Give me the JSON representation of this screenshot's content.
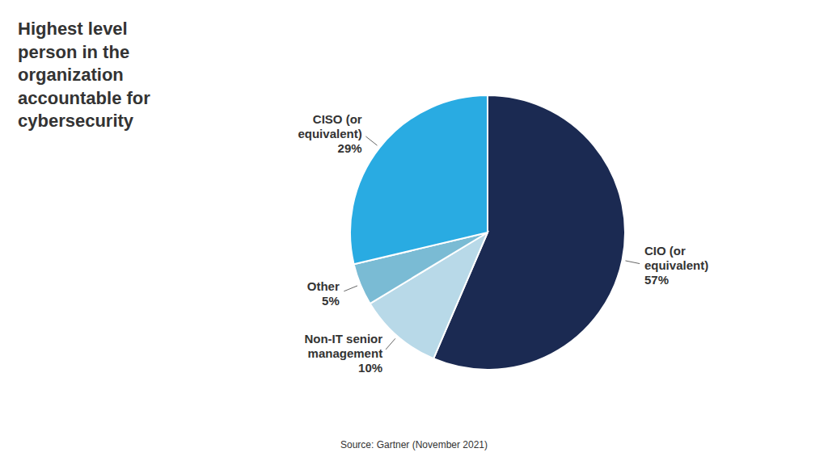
{
  "chart_data": {
    "type": "pie",
    "title": "Highest level\nperson in the\norganization\naccountable for\ncybersecurity",
    "annotations": [
      "Source: Gartner (November 2021)"
    ],
    "categories": [
      "CIO (or\nequivalent)",
      "Non-IT senior\nmanagement",
      "Other",
      "CISO (or\nequivalent)"
    ],
    "values": [
      57,
      10,
      5,
      29
    ],
    "value_labels": [
      "57%",
      "10%",
      "5%",
      "29%"
    ],
    "data_labels": true,
    "colors": [
      "#1b2a52",
      "#b8d9e8",
      "#7abbd4",
      "#29abe2"
    ]
  }
}
